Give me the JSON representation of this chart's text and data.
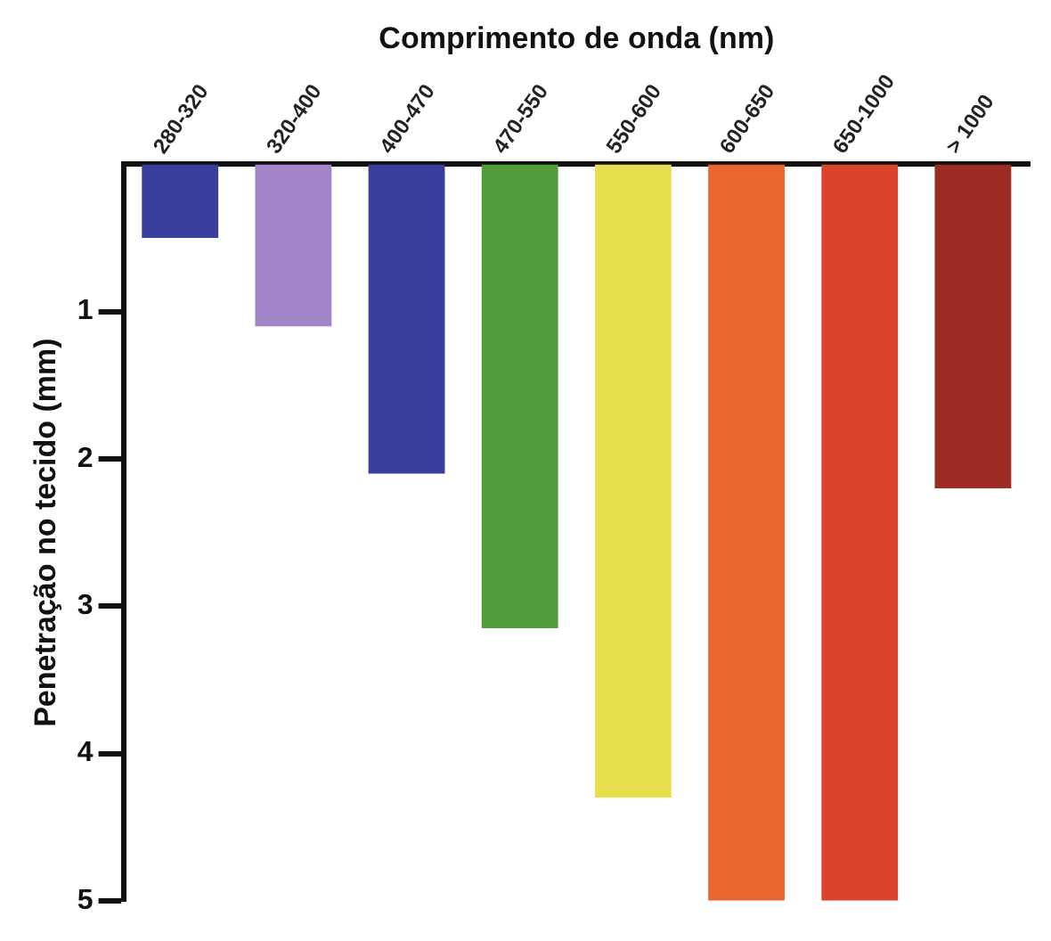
{
  "chart_data": {
    "type": "bar",
    "xlabel": "Comprimento de onda (nm)",
    "ylabel": "Penetração no tecido (mm)",
    "categories": [
      "280-320",
      "320-400",
      "400-470",
      "470-550",
      "550-600",
      "600-650",
      "650-1000",
      "> 1000"
    ],
    "values": [
      0.5,
      1.1,
      2.1,
      3.15,
      4.3,
      5,
      5,
      2.2
    ],
    "colors": [
      "#3b3f9c",
      "#a285c8",
      "#3b3f9c",
      "#529c3c",
      "#e6de4c",
      "#ea6630",
      "#db432c",
      "#9c2c24"
    ],
    "ylim": [
      5,
      0
    ],
    "yticks": [
      1,
      2,
      3,
      4,
      5
    ],
    "grid": false
  }
}
